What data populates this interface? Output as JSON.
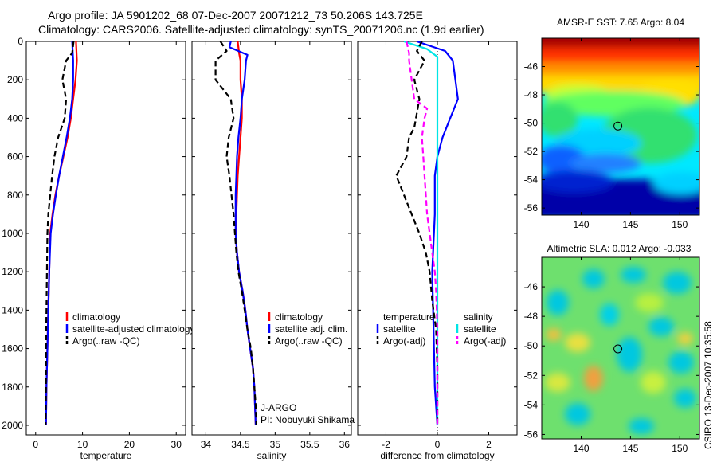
{
  "header": {
    "line1": "Argo profile: JA 5901202_68 07-Dec-2007 20071212_73 50.206S 143.725E",
    "line2": "Climatology: CARS2006. Satellite-adjusted climatology: synTS_20071206.nc (1.9d earlier)"
  },
  "colors": {
    "climatology": "#ff0000",
    "satellite": "#0000ff",
    "argo": "#000000",
    "sat_salinity": "#00e5e5",
    "argo_salinity": "#ff00ff"
  },
  "chart_data": [
    {
      "type": "line",
      "panel": "temperature",
      "xlabel": "temperature",
      "xlim": [
        -2,
        32
      ],
      "xticks": [
        0,
        10,
        20,
        30
      ],
      "ylim": [
        0,
        2050
      ],
      "yticks": [
        0,
        200,
        400,
        600,
        800,
        1000,
        1200,
        1400,
        1600,
        1800,
        2000
      ],
      "y_reversed": true,
      "legend": [
        "climatology",
        "satellite-adjusted climatology",
        "Argo(..raw -QC)"
      ],
      "series": [
        {
          "name": "climatology",
          "style": "solid",
          "color": "#ff0000",
          "points": [
            [
              8.6,
              0
            ],
            [
              8.8,
              100
            ],
            [
              8.5,
              200
            ],
            [
              8.0,
              300
            ],
            [
              7.5,
              400
            ],
            [
              6.8,
              500
            ],
            [
              5.9,
              600
            ],
            [
              5.0,
              700
            ],
            [
              4.2,
              800
            ],
            [
              3.6,
              900
            ],
            [
              3.1,
              1000
            ],
            [
              2.9,
              1200
            ],
            [
              2.7,
              1400
            ],
            [
              2.5,
              1600
            ],
            [
              2.3,
              1800
            ],
            [
              2.2,
              2000
            ]
          ]
        },
        {
          "name": "satellite-adjusted climatology",
          "style": "solid",
          "color": "#0000ff",
          "points": [
            [
              7.8,
              0
            ],
            [
              7.9,
              50
            ],
            [
              8.0,
              100
            ],
            [
              8.0,
              200
            ],
            [
              7.8,
              300
            ],
            [
              7.3,
              400
            ],
            [
              6.6,
              500
            ],
            [
              5.8,
              600
            ],
            [
              5.0,
              700
            ],
            [
              4.3,
              800
            ],
            [
              3.7,
              900
            ],
            [
              3.2,
              1000
            ],
            [
              2.9,
              1200
            ],
            [
              2.7,
              1400
            ],
            [
              2.5,
              1600
            ],
            [
              2.3,
              1800
            ],
            [
              2.2,
              2000
            ]
          ]
        },
        {
          "name": "Argo(..raw -QC)",
          "style": "dashed",
          "color": "#000000",
          "points": [
            [
              8.1,
              0
            ],
            [
              7.8,
              60
            ],
            [
              6.5,
              100
            ],
            [
              5.7,
              200
            ],
            [
              6.5,
              300
            ],
            [
              6.2,
              400
            ],
            [
              4.8,
              500
            ],
            [
              4.0,
              600
            ],
            [
              3.5,
              700
            ],
            [
              3.1,
              800
            ],
            [
              2.7,
              900
            ],
            [
              2.5,
              1000
            ],
            [
              2.4,
              1200
            ],
            [
              2.3,
              1400
            ],
            [
              2.2,
              1600
            ],
            [
              2.2,
              1800
            ],
            [
              2.1,
              2000
            ]
          ]
        }
      ]
    },
    {
      "type": "line",
      "panel": "salinity",
      "xlabel": "salinity",
      "xlim": [
        33.8,
        36.1
      ],
      "xticks": [
        34,
        34.5,
        35,
        35.5,
        36
      ],
      "ylim": [
        0,
        2050
      ],
      "y_reversed": true,
      "legend": [
        "climatology",
        "satellite adj. clim.",
        "Argo(..raw -QC)"
      ],
      "annotation": [
        "J-ARGO",
        "PI: Nobuyuki Shikama"
      ],
      "series": [
        {
          "name": "climatology",
          "style": "solid",
          "color": "#ff0000",
          "points": [
            [
              34.46,
              0
            ],
            [
              34.48,
              60
            ],
            [
              34.5,
              100
            ],
            [
              34.5,
              200
            ],
            [
              34.52,
              300
            ],
            [
              34.52,
              400
            ],
            [
              34.5,
              500
            ],
            [
              34.48,
              600
            ],
            [
              34.46,
              700
            ],
            [
              34.45,
              800
            ],
            [
              34.44,
              900
            ],
            [
              34.43,
              1000
            ],
            [
              34.45,
              1100
            ],
            [
              34.48,
              1200
            ],
            [
              34.53,
              1300
            ],
            [
              34.57,
              1400
            ],
            [
              34.6,
              1500
            ],
            [
              34.64,
              1600
            ],
            [
              34.68,
              1700
            ],
            [
              34.7,
              1800
            ],
            [
              34.71,
              1900
            ],
            [
              34.72,
              2000
            ]
          ]
        },
        {
          "name": "satellite adj. clim.",
          "style": "solid",
          "color": "#0000ff",
          "points": [
            [
              34.36,
              0
            ],
            [
              34.34,
              30
            ],
            [
              34.6,
              70
            ],
            [
              34.58,
              100
            ],
            [
              34.56,
              200
            ],
            [
              34.52,
              300
            ],
            [
              34.5,
              400
            ],
            [
              34.47,
              500
            ],
            [
              34.45,
              600
            ],
            [
              34.44,
              700
            ],
            [
              34.43,
              800
            ],
            [
              34.43,
              900
            ],
            [
              34.43,
              1000
            ],
            [
              34.45,
              1100
            ],
            [
              34.48,
              1200
            ],
            [
              34.53,
              1300
            ],
            [
              34.57,
              1400
            ],
            [
              34.6,
              1500
            ],
            [
              34.64,
              1600
            ],
            [
              34.68,
              1700
            ],
            [
              34.7,
              1800
            ],
            [
              34.71,
              1900
            ],
            [
              34.72,
              2000
            ]
          ]
        },
        {
          "name": "Argo(..raw -QC)",
          "style": "dashed",
          "color": "#000000",
          "points": [
            [
              34.21,
              0
            ],
            [
              34.3,
              50
            ],
            [
              34.14,
              100
            ],
            [
              34.14,
              200
            ],
            [
              34.36,
              300
            ],
            [
              34.4,
              400
            ],
            [
              34.33,
              500
            ],
            [
              34.3,
              600
            ],
            [
              34.34,
              700
            ],
            [
              34.37,
              800
            ],
            [
              34.4,
              900
            ],
            [
              34.42,
              1000
            ],
            [
              34.44,
              1100
            ],
            [
              34.47,
              1200
            ],
            [
              34.52,
              1300
            ],
            [
              34.56,
              1400
            ],
            [
              34.6,
              1500
            ],
            [
              34.65,
              1600
            ],
            [
              34.68,
              1700
            ],
            [
              34.7,
              1800
            ],
            [
              34.72,
              1900
            ],
            [
              34.73,
              2000
            ]
          ]
        }
      ]
    },
    {
      "type": "line",
      "panel": "difference",
      "xlabel": "difference from climatology",
      "xlim": [
        -3.1,
        3.1
      ],
      "xticks": [
        -2,
        0,
        2
      ],
      "ylim": [
        0,
        2050
      ],
      "y_reversed": true,
      "legend_temperature": {
        "title": "temperature",
        "items": [
          "satellite",
          "Argo(-adj)"
        ]
      },
      "legend_salinity": {
        "title": "salinity",
        "items": [
          "satellite",
          "Argo(-adj)"
        ]
      },
      "series": [
        {
          "name": "temperature satellite",
          "style": "solid",
          "color": "#0000ff",
          "points": [
            [
              -0.8,
              0
            ],
            [
              0.3,
              50
            ],
            [
              0.6,
              100
            ],
            [
              0.7,
              200
            ],
            [
              0.8,
              300
            ],
            [
              0.5,
              400
            ],
            [
              0.2,
              500
            ],
            [
              0.0,
              600
            ],
            [
              -0.1,
              700
            ],
            [
              -0.1,
              900
            ],
            [
              -0.2,
              1200
            ],
            [
              -0.15,
              1500
            ],
            [
              -0.1,
              1800
            ],
            [
              0.0,
              2000
            ]
          ]
        },
        {
          "name": "temperature Argo(-adj)",
          "style": "dashed",
          "color": "#000000",
          "points": [
            [
              -0.6,
              0
            ],
            [
              -0.8,
              50
            ],
            [
              -0.5,
              100
            ],
            [
              -0.9,
              200
            ],
            [
              -0.7,
              300
            ],
            [
              -0.9,
              450
            ],
            [
              -1.1,
              500
            ],
            [
              -1.2,
              600
            ],
            [
              -1.6,
              700
            ],
            [
              -1.3,
              800
            ],
            [
              -1.0,
              900
            ],
            [
              -0.7,
              1000
            ],
            [
              -0.45,
              1100
            ],
            [
              -0.3,
              1200
            ],
            [
              -0.2,
              1350
            ],
            [
              -0.05,
              1500
            ],
            [
              0.0,
              1700
            ],
            [
              0.0,
              2000
            ]
          ]
        },
        {
          "name": "salinity satellite",
          "style": "solid",
          "color": "#00e5e5",
          "points": [
            [
              -1.3,
              0
            ],
            [
              -0.4,
              40
            ],
            [
              0.0,
              80
            ],
            [
              0.0,
              2000
            ]
          ]
        },
        {
          "name": "salinity Argo(-adj)",
          "style": "dashed",
          "color": "#ff00ff",
          "points": [
            [
              -1.2,
              0
            ],
            [
              -1.1,
              60
            ],
            [
              -1.1,
              100
            ],
            [
              -1.0,
              200
            ],
            [
              -0.9,
              300
            ],
            [
              -0.4,
              350
            ],
            [
              -0.5,
              400
            ],
            [
              -0.6,
              500
            ],
            [
              -0.55,
              600
            ],
            [
              -0.5,
              700
            ],
            [
              -0.45,
              800
            ],
            [
              -0.4,
              900
            ],
            [
              -0.3,
              1000
            ],
            [
              -0.2,
              1100
            ],
            [
              -0.1,
              1200
            ],
            [
              -0.05,
              1300
            ],
            [
              0.0,
              1500
            ],
            [
              0.0,
              2000
            ]
          ]
        }
      ]
    },
    {
      "type": "heatmap",
      "panel": "sst_map",
      "title": "AMSR-E SST: 7.65 Argo: 8.04",
      "xlim": [
        136,
        152
      ],
      "ylim": [
        -56.5,
        -44
      ],
      "xticks": [
        140,
        145,
        150
      ],
      "yticks": [
        -46,
        -48,
        -50,
        -52,
        -54,
        -56
      ],
      "marker": {
        "lon": 143.725,
        "lat": -50.206
      }
    },
    {
      "type": "heatmap",
      "panel": "sla_map",
      "title": "Altimetric SLA: 0.012 Argo: -0.033",
      "xlim": [
        136,
        152
      ],
      "ylim": [
        -56.3,
        -44
      ],
      "xticks": [
        140,
        145,
        150
      ],
      "yticks": [
        -46,
        -48,
        -50,
        -52,
        -54,
        -56
      ],
      "marker": {
        "lon": 143.725,
        "lat": -50.206
      }
    }
  ],
  "footer_side": "CSIRO 13-Dec-2007 10:35:58"
}
